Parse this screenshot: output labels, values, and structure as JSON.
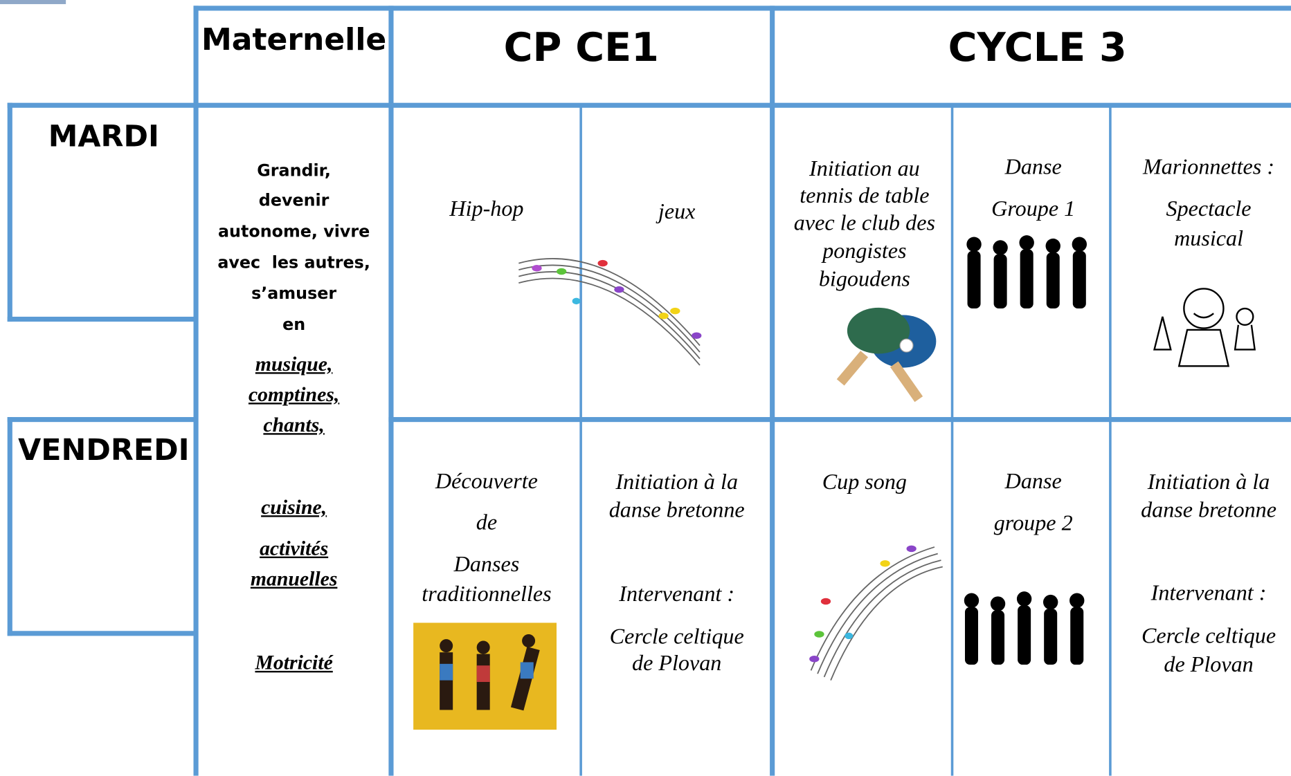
{
  "header": {
    "maternelle": "Maternelle",
    "cp_ce1": "CP CE1",
    "cycle_3": "CYCLE 3"
  },
  "days": [
    "MARDI",
    "VENDREDI"
  ],
  "maternelle": {
    "intro": [
      "Grandir,",
      "devenir",
      "autonome, vivre",
      "avec  les autres,",
      "s’amuser",
      "en"
    ],
    "topics": [
      "musique,",
      "comptines,",
      "chants,",
      "cuisine,",
      "activités",
      "manuelles",
      "Motricité"
    ]
  },
  "mardi": [
    [
      "Hip-hop"
    ],
    [
      "jeux"
    ],
    [
      "Initiation au",
      "tennis de table",
      "avec le club des",
      "pongistes",
      "bigoudens"
    ],
    [
      "Danse",
      "Groupe 1"
    ],
    [
      "Marionnettes :",
      "Spectacle",
      "musical"
    ]
  ],
  "vendredi": [
    [
      "Découverte",
      "de",
      "Danses",
      "traditionnelles"
    ],
    [
      "Initiation à la",
      "danse bretonne",
      "Intervenant :",
      "Cercle celtique",
      "de Plovan"
    ],
    [
      "Cup song"
    ],
    [
      "Danse",
      "groupe 2"
    ],
    [
      "Initiation à la",
      "danse bretonne",
      "Intervenant :",
      "Cercle celtique",
      "de Plovan"
    ]
  ]
}
